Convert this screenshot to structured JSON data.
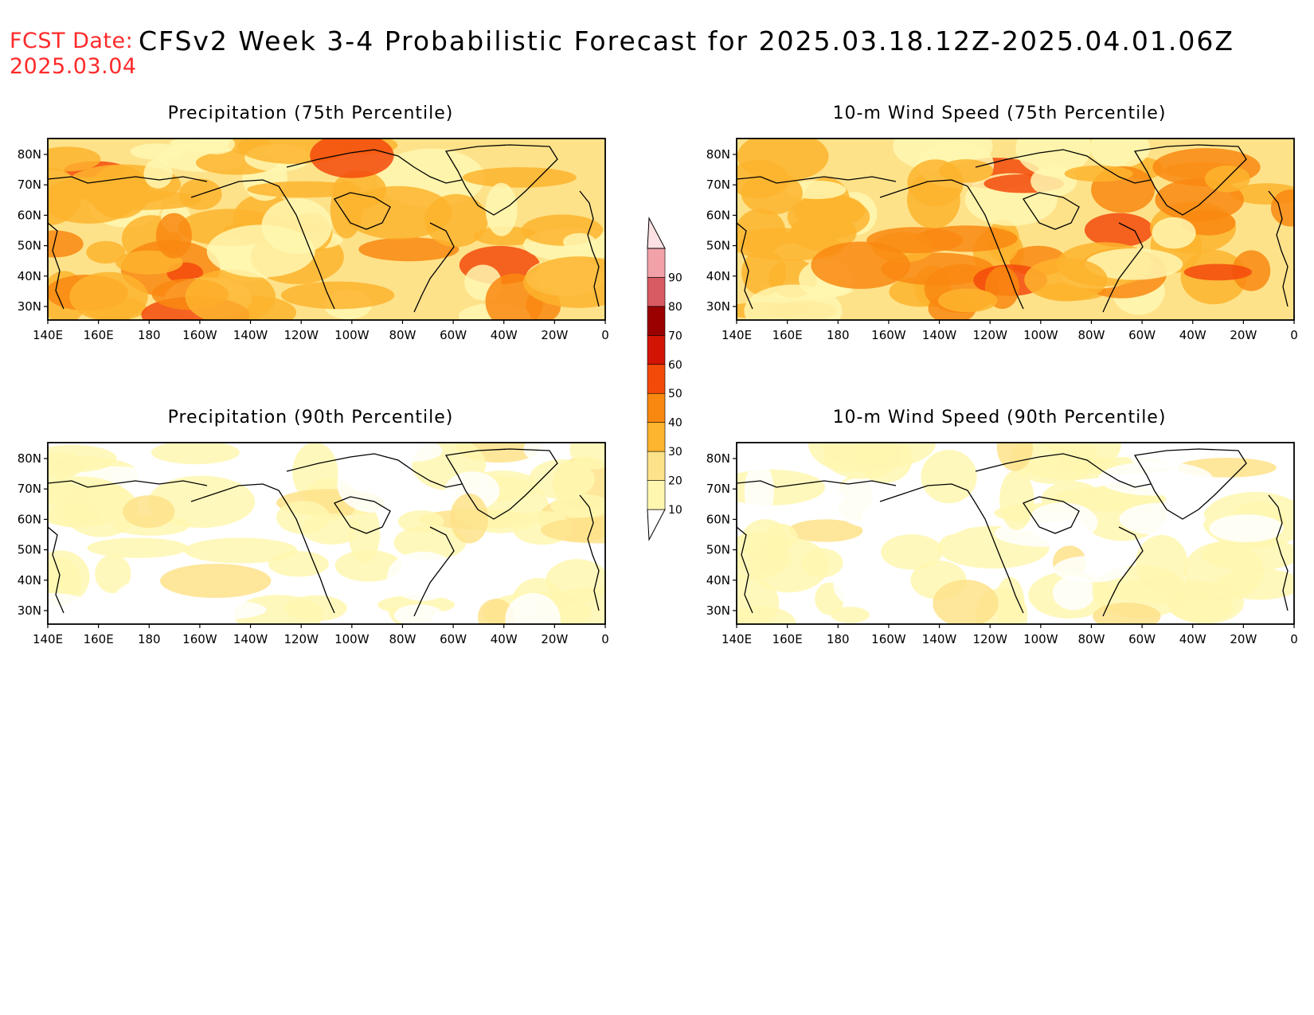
{
  "header": {
    "fcst_label": "FCST Date:",
    "fcst_date": "2025.03.04",
    "title": "CFSv2 Week 3-4 Probabilistic Forecast for 2025.03.18.12Z-2025.04.01.06Z"
  },
  "axes": {
    "lon_ticks": [
      "140E",
      "160E",
      "180",
      "160W",
      "140W",
      "120W",
      "100W",
      "80W",
      "60W",
      "40W",
      "20W",
      "0"
    ],
    "lat_ticks": [
      "80N",
      "70N",
      "60N",
      "50N",
      "40N",
      "30N"
    ]
  },
  "panels": [
    {
      "id": "precip-75",
      "title": "Precipitation (75th Percentile)",
      "level": 0.7
    },
    {
      "id": "wind-75",
      "title": "10-m Wind Speed (75th Percentile)",
      "level": 0.75
    },
    {
      "id": "precip-90",
      "title": "Precipitation (90th Percentile)",
      "level": 0.25
    },
    {
      "id": "wind-90",
      "title": "10-m Wind Speed (90th Percentile)",
      "level": 0.18
    }
  ],
  "legend": {
    "levels": [
      "10",
      "20",
      "30",
      "40",
      "50",
      "60",
      "70",
      "80",
      "90"
    ],
    "colors": [
      "#fff7b0",
      "#fee28a",
      "#fdb42e",
      "#f98810",
      "#f34a0a",
      "#d21404",
      "#9b0000",
      "#d85a62",
      "#f2a1a8",
      "#fde2e4"
    ]
  },
  "colors": {
    "low": "#fff7b0",
    "mid": "#fee28a",
    "high": "#fdb42e",
    "higher": "#f98810",
    "peak": "#f34a0a"
  }
}
